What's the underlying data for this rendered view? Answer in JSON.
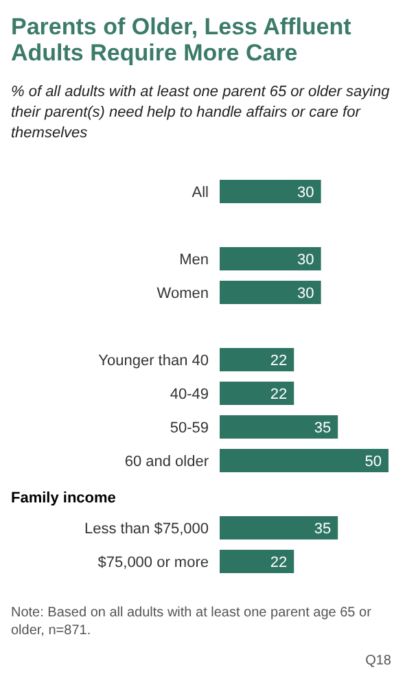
{
  "chart_data": {
    "type": "bar",
    "orientation": "horizontal",
    "title": "Parents of Older, Less Affluent Adults Require More Care",
    "subtitle": "% of all adults with at least one parent 65 or older saying their parent(s) need help to handle affairs or care for themselves",
    "categories": [
      "All",
      null,
      "Men",
      "Women",
      null,
      "Younger than 40",
      "40-49",
      "50-59",
      "60 and older",
      null,
      "Less than $75,000",
      "$75,000 or more"
    ],
    "values": [
      30,
      null,
      30,
      30,
      null,
      22,
      22,
      35,
      50,
      null,
      35,
      22
    ],
    "color": "#2e7462",
    "xlim": [
      0,
      50
    ],
    "data_labels": true,
    "tick_labels": "y",
    "grid": false,
    "legend": false,
    "annotations": [
      "Family income",
      "Note: Based on all adults with at least one parent age 65 or older, n=871.",
      "Q18"
    ]
  }
}
